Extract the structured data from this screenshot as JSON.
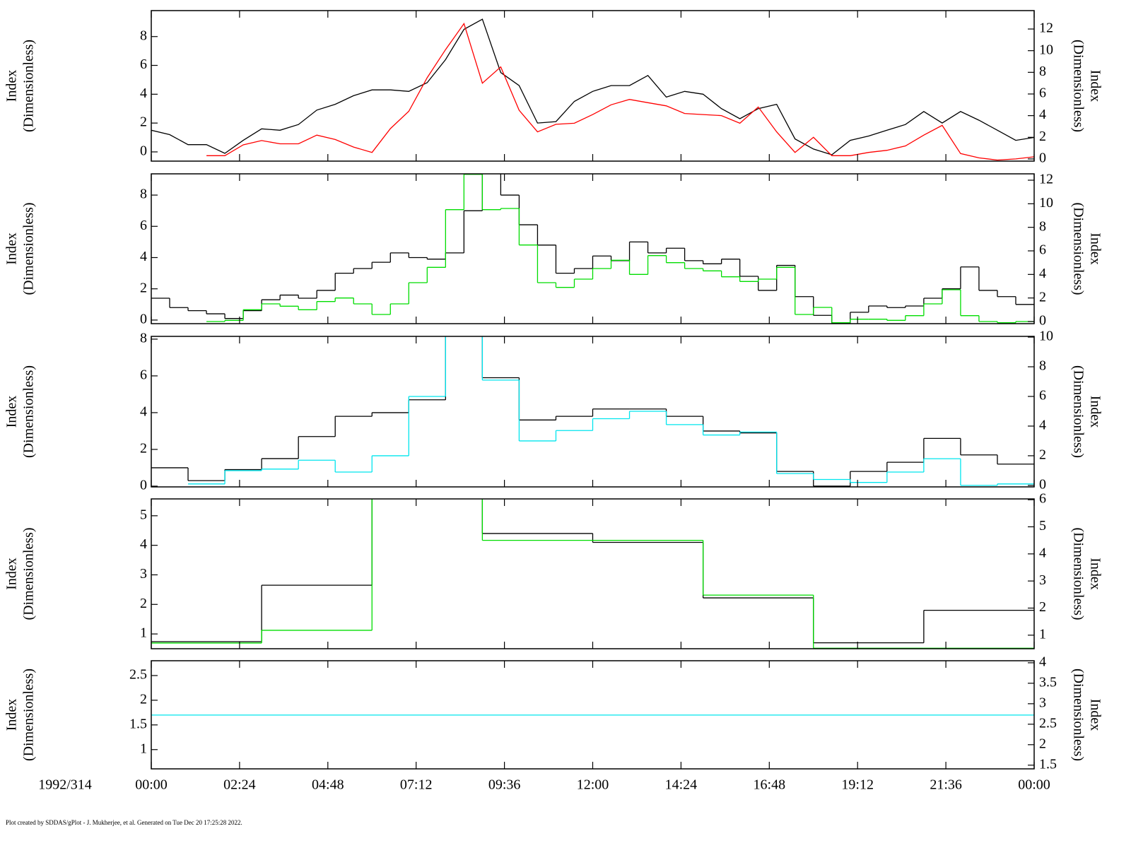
{
  "time_axis": {
    "xlim": [
      0,
      24
    ],
    "xticks": [
      {
        "value": 0,
        "label": "00:00"
      },
      {
        "value": 2.4,
        "label": "02:24"
      },
      {
        "value": 4.8,
        "label": "04:48"
      },
      {
        "value": 7.2,
        "label": "07:12"
      },
      {
        "value": 9.6,
        "label": "09:36"
      },
      {
        "value": 12,
        "label": "12:00"
      },
      {
        "value": 14.4,
        "label": "14:24"
      },
      {
        "value": 16.8,
        "label": "16:48"
      },
      {
        "value": 19.2,
        "label": "19:12"
      },
      {
        "value": 21.6,
        "label": "21:36"
      },
      {
        "value": 24,
        "label": "00:00"
      }
    ],
    "date_label": "1992/314"
  },
  "chart_data": [
    {
      "type": "line",
      "ylabel": [
        "Index",
        "(Dimensionless)"
      ],
      "y2label": [
        "Index",
        "(Dimensionless)"
      ],
      "ylim": [
        -0.64,
        9.8
      ],
      "yticks": [
        0,
        2,
        4,
        6,
        8
      ],
      "y2lim": [
        -0.2,
        13.7
      ],
      "y2ticks": [
        0,
        2,
        4,
        6,
        8,
        10,
        12
      ],
      "x": [
        0,
        0.5,
        1,
        1.5,
        2,
        2.5,
        3,
        3.5,
        4,
        4.5,
        5,
        5.5,
        6,
        6.5,
        7,
        7.5,
        8,
        8.5,
        9,
        9.5,
        10,
        10.5,
        11,
        11.5,
        12,
        12.5,
        13,
        13.5,
        14,
        14.5,
        15,
        15.5,
        16,
        16.5,
        17,
        17.5,
        18,
        18.5,
        19,
        19.5,
        20,
        20.5,
        21,
        21.5,
        22,
        22.5,
        23,
        23.5,
        24
      ],
      "series": [
        {
          "color": "#000000",
          "values": [
            1.5,
            1.2,
            0.5,
            0.5,
            -0.1,
            0.8,
            1.6,
            1.5,
            1.9,
            2.9,
            3.3,
            3.9,
            4.3,
            4.3,
            4.2,
            4.8,
            6.4,
            8.5,
            9.2,
            5.5,
            4.6,
            2.0,
            2.1,
            3.5,
            4.2,
            4.6,
            4.6,
            5.3,
            3.8,
            4.2,
            4.0,
            3.0,
            2.3,
            3.0,
            3.3,
            0.9,
            0.2,
            -0.2,
            0.8,
            1.1,
            1.5,
            1.9,
            2.8,
            2.0,
            2.8,
            2.2,
            1.5,
            0.8,
            1.0
          ]
        },
        {
          "color": "#ff0000",
          "axis": "y2",
          "values": [
            null,
            null,
            null,
            0.3,
            0.3,
            1.3,
            1.7,
            1.4,
            1.4,
            2.2,
            1.8,
            1.1,
            0.6,
            2.8,
            4.4,
            7.5,
            10.1,
            12.5,
            7.0,
            8.5,
            4.5,
            2.5,
            3.2,
            3.3,
            4.1,
            5.0,
            5.5,
            5.2,
            4.9,
            4.2,
            4.1,
            4.0,
            3.3,
            4.8,
            2.5,
            0.6,
            2.0,
            0.3,
            0.3,
            0.6,
            0.8,
            1.2,
            2.2,
            3.1,
            0.5,
            0.1,
            -0.1,
            0,
            0.2
          ]
        }
      ]
    },
    {
      "type": "step",
      "ylabel": [
        "Index",
        "(Dimensionless)"
      ],
      "y2label": [
        "Index",
        "(Dimensionless)"
      ],
      "ylim": [
        -0.23,
        9.36
      ],
      "yticks": [
        0,
        2,
        4,
        6,
        8
      ],
      "y2lim": [
        -0.18,
        12.54
      ],
      "y2ticks": [
        0,
        2,
        4,
        6,
        8,
        10,
        12
      ],
      "x": [
        0,
        0.5,
        1,
        1.5,
        2,
        2.5,
        3,
        3.5,
        4,
        4.5,
        5,
        5.5,
        6,
        6.5,
        7,
        7.5,
        8,
        8.5,
        9,
        9.5,
        10,
        10.5,
        11,
        11.5,
        12,
        12.5,
        13,
        13.5,
        14,
        14.5,
        15,
        15.5,
        16,
        16.5,
        17,
        17.5,
        18,
        18.5,
        19,
        19.5,
        20,
        20.5,
        21,
        21.5,
        22,
        22.5,
        23,
        23.5,
        24
      ],
      "series": [
        {
          "color": "#000000",
          "values": [
            1.4,
            0.8,
            0.6,
            0.4,
            0.1,
            0.6,
            1.3,
            1.6,
            1.4,
            1.9,
            3.0,
            3.3,
            3.7,
            4.3,
            4.0,
            3.9,
            4.3,
            7.0,
            9.4,
            8.0,
            6.1,
            4.8,
            3.0,
            3.3,
            4.1,
            3.8,
            5.0,
            4.3,
            4.6,
            3.8,
            3.6,
            3.9,
            2.8,
            1.9,
            3.5,
            1.5,
            0.3,
            -0.2,
            0.5,
            0.9,
            0.8,
            0.9,
            1.4,
            2.0,
            3.4,
            1.9,
            1.5,
            1.0,
            1.0
          ]
        },
        {
          "color": "#00dd00",
          "axis": "y2",
          "values": [
            null,
            null,
            null,
            0,
            0.1,
            1.0,
            1.5,
            1.3,
            1.0,
            1.7,
            2.0,
            1.5,
            0.6,
            1.5,
            3.3,
            4.6,
            9.5,
            12.5,
            9.5,
            9.6,
            6.5,
            3.3,
            2.9,
            3.6,
            4.5,
            5.2,
            4.0,
            5.6,
            5.0,
            4.5,
            4.3,
            3.8,
            3.4,
            3.6,
            4.6,
            0.6,
            1.2,
            -0.1,
            0.2,
            0.2,
            0.1,
            0.5,
            1.5,
            2.7,
            0.5,
            0,
            -0.1,
            0,
            0
          ]
        }
      ]
    },
    {
      "type": "step",
      "ylabel": [
        "Index",
        "(Dimensionless)"
      ],
      "y2label": [
        "Index",
        "(Dimensionless)"
      ],
      "ylim": [
        -0.04,
        8.15
      ],
      "yticks": [
        0,
        2,
        4,
        6,
        8
      ],
      "y2lim": [
        -0.1,
        10.05
      ],
      "y2ticks": [
        0,
        2,
        4,
        6,
        8,
        10
      ],
      "x": [
        0,
        1,
        2,
        3,
        4,
        5,
        6,
        7,
        8,
        9,
        10,
        11,
        12,
        13,
        14,
        15,
        16,
        17,
        18,
        19,
        20,
        21,
        22,
        23,
        24
      ],
      "series": [
        {
          "color": "#000000",
          "values": [
            1.0,
            0.3,
            0.9,
            1.5,
            2.7,
            3.8,
            4.0,
            4.7,
            9,
            5.9,
            3.6,
            3.8,
            4.2,
            4.2,
            3.8,
            3.0,
            2.9,
            0.8,
            0.0,
            0.8,
            1.3,
            2.6,
            1.7,
            1.2,
            1.2
          ]
        },
        {
          "color": "#00e5ee",
          "axis": "y2",
          "values": [
            null,
            0.1,
            1.0,
            1.1,
            1.7,
            0.9,
            2.0,
            6.0,
            11,
            7.1,
            3.0,
            3.7,
            4.5,
            5.0,
            4.1,
            3.4,
            3.6,
            0.8,
            0.4,
            0.2,
            0.9,
            1.8,
            0.0,
            0.1,
            0.1
          ]
        }
      ]
    },
    {
      "type": "step",
      "ylabel": [
        "Index",
        "(Dimensionless)"
      ],
      "y2label": [
        "Index",
        "(Dimensionless)"
      ],
      "ylim": [
        0.5,
        5.57
      ],
      "yticks": [
        1,
        2,
        3,
        4,
        5
      ],
      "y2lim": [
        0.5,
        6.03
      ],
      "y2ticks": [
        1,
        2,
        3,
        4,
        5,
        6
      ],
      "x": [
        0,
        3,
        6,
        9,
        12,
        15,
        18,
        21,
        24
      ],
      "series": [
        {
          "color": "#000000",
          "values": [
            0.74,
            2.65,
            6,
            4.4,
            4.1,
            2.22,
            0.7,
            1.8,
            1.8
          ]
        },
        {
          "color": "#00dd00",
          "axis": "y2",
          "values": [
            0.71,
            1.18,
            7,
            4.5,
            4.5,
            2.48,
            0.52,
            0.52,
            0.52
          ]
        }
      ]
    },
    {
      "type": "step",
      "ylabel": [
        "Index",
        "(Dimensionless)"
      ],
      "y2label": [
        "Index",
        "(Dimensionless)"
      ],
      "ylim": [
        0.61,
        2.8
      ],
      "yticks": [
        1,
        1.5,
        2,
        2.5
      ],
      "y2lim": [
        1.41,
        4.05
      ],
      "y2ticks": [
        1.5,
        2,
        2.5,
        3,
        3.5,
        4
      ],
      "x": [
        0,
        24
      ],
      "series": [
        {
          "color": "#00e5ee",
          "values": [
            1.7,
            1.7
          ]
        }
      ]
    }
  ],
  "footer": "Plot created by SDDAS/gPlot - J. Mukherjee, et al.  Generated on Tue Dec 20 17:25:28 2022."
}
